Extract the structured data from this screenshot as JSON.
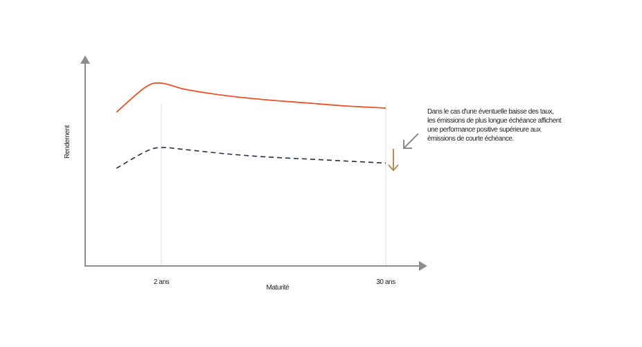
{
  "chart_data": {
    "type": "line",
    "xlabel": "Maturité",
    "ylabel": "Rendement",
    "x_ticks": [
      "2 ans",
      "30 ans"
    ],
    "x_tick_values": [
      2,
      30
    ],
    "grid": "vertical reference lines at 2 ans and 30 ans",
    "legend": "none",
    "series": [
      {
        "style": "solid",
        "color": "#f04e23",
        "x": [
          -3.6,
          0,
          2,
          5,
          10,
          15,
          20,
          25,
          30
        ],
        "y": [
          74,
          86,
          88,
          85,
          82,
          80,
          78.5,
          77,
          76
        ]
      },
      {
        "style": "dashed",
        "color": "#1e2d45",
        "x": [
          -3.6,
          0,
          2,
          5,
          10,
          15,
          20,
          25,
          30
        ],
        "y": [
          47,
          55,
          57,
          56,
          54,
          52.5,
          51.5,
          50.5,
          49.5
        ]
      }
    ],
    "annotation": {
      "lines": [
        "Dans le cas d'une éventuelle baisse des taux,",
        "les émissions de plus longue échéance affichent",
        "une performance positive supérieure aux",
        "émissions de courte échéance."
      ],
      "arrow_color": "#8c8c8c",
      "down_arrow_color": "#b08d57"
    }
  },
  "colors": {
    "axis": "#8c8c8c",
    "gridline": "#dddddd"
  }
}
